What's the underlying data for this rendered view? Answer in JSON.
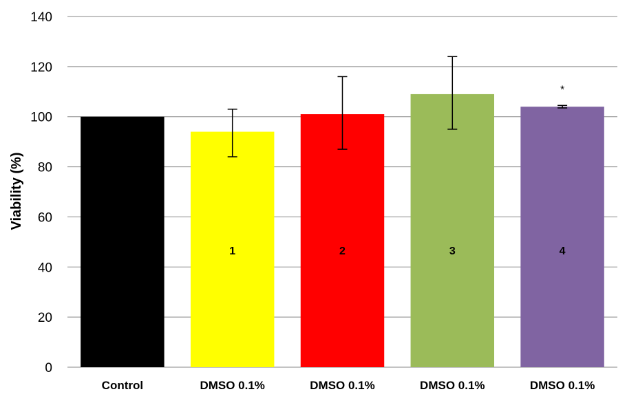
{
  "chart_data": {
    "type": "bar",
    "ylabel": "Viability (%)",
    "ylim": [
      0,
      140
    ],
    "yticks": [
      0,
      20,
      40,
      60,
      80,
      100,
      120,
      140
    ],
    "grid": true,
    "legend": "none",
    "categories": [
      "Control",
      "DMSO 0.1%",
      "DMSO 0.1%",
      "DMSO 0.1%",
      "DMSO 0.1%"
    ],
    "values": [
      100,
      94,
      101,
      109,
      104
    ],
    "error_bars": [
      {
        "low": null,
        "high": null
      },
      {
        "low": 84,
        "high": 103
      },
      {
        "low": 87,
        "high": 116
      },
      {
        "low": 95,
        "high": 124
      },
      {
        "low": 103.5,
        "high": 104.5
      }
    ],
    "bar_labels": [
      "",
      "1",
      "2",
      "3",
      "4"
    ],
    "annotations": [
      "",
      "",
      "",
      "",
      "*"
    ],
    "colors": [
      "#000000",
      "#ffff00",
      "#ff0000",
      "#9bbb59",
      "#8064a2"
    ]
  }
}
